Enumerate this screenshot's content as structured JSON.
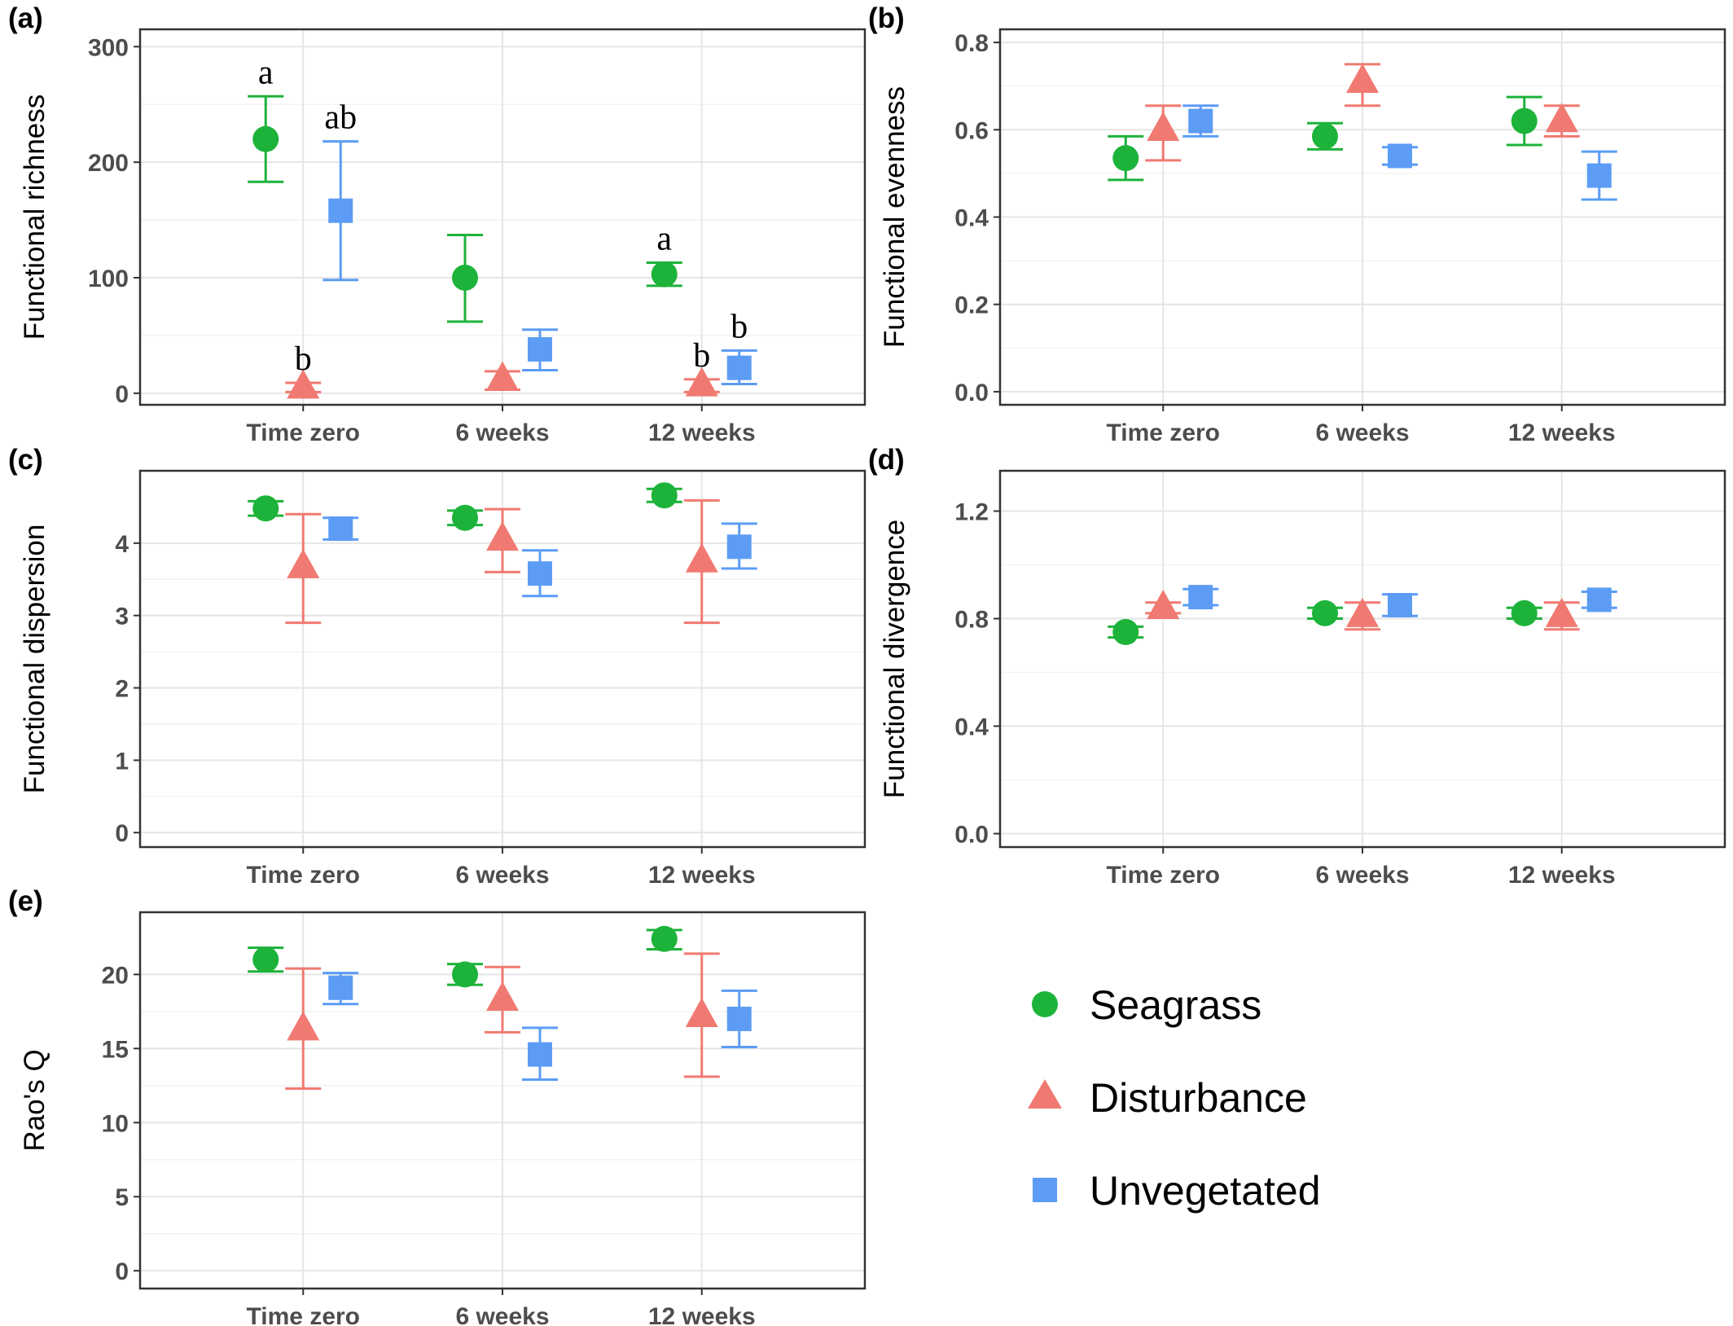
{
  "legend": {
    "items": [
      {
        "name": "Seagrass",
        "color": "#1db33a",
        "shape": "circle"
      },
      {
        "name": "Disturbance",
        "color": "#f07a72",
        "shape": "triangle"
      },
      {
        "name": "Unvegetated",
        "color": "#5c9cf5",
        "shape": "square"
      }
    ]
  },
  "chart_data": [
    {
      "type": "scatter",
      "panel_label": "(a)",
      "ylabel": "Functional richness",
      "categories": [
        "Time zero",
        "6 weeks",
        "12 weeks"
      ],
      "ylim": [
        -10,
        315
      ],
      "yticks": [
        0,
        100,
        200,
        300
      ],
      "grid": true,
      "series": [
        {
          "name": "Seagrass",
          "values": [
            220,
            100,
            103
          ],
          "lower": [
            183,
            62,
            93
          ],
          "upper": [
            257,
            137,
            113
          ]
        },
        {
          "name": "Disturbance",
          "values": [
            5,
            12,
            7
          ],
          "lower": [
            1,
            3,
            1
          ],
          "upper": [
            9,
            19,
            12
          ]
        },
        {
          "name": "Unvegetated",
          "values": [
            158,
            38,
            22
          ],
          "lower": [
            98,
            20,
            8
          ],
          "upper": [
            218,
            55,
            37
          ]
        }
      ],
      "annotations": [
        {
          "text": "a",
          "category": "Time zero",
          "series": "Seagrass",
          "y": 257
        },
        {
          "text": "b",
          "category": "Time zero",
          "series": "Disturbance",
          "y": 9
        },
        {
          "text": "ab",
          "category": "Time zero",
          "series": "Unvegetated",
          "y": 218
        },
        {
          "text": "a",
          "category": "12 weeks",
          "series": "Seagrass",
          "y": 113
        },
        {
          "text": "b",
          "category": "12 weeks",
          "series": "Disturbance",
          "y": 12
        },
        {
          "text": "b",
          "category": "12 weeks",
          "series": "Unvegetated",
          "y": 37
        }
      ]
    },
    {
      "type": "scatter",
      "panel_label": "(b)",
      "ylabel": "Functional evenness",
      "categories": [
        "Time zero",
        "6 weeks",
        "12 weeks"
      ],
      "ylim": [
        -0.03,
        0.83
      ],
      "yticks": [
        0.0,
        0.2,
        0.4,
        0.6,
        0.8
      ],
      "tick_decimals": 1,
      "grid": true,
      "series": [
        {
          "name": "Seagrass",
          "values": [
            0.535,
            0.585,
            0.62
          ],
          "lower": [
            0.485,
            0.555,
            0.565
          ],
          "upper": [
            0.585,
            0.615,
            0.675
          ]
        },
        {
          "name": "Disturbance",
          "values": [
            0.6,
            0.71,
            0.62
          ],
          "lower": [
            0.53,
            0.655,
            0.585
          ],
          "upper": [
            0.655,
            0.75,
            0.655
          ]
        },
        {
          "name": "Unvegetated",
          "values": [
            0.62,
            0.54,
            0.495
          ],
          "lower": [
            0.585,
            0.52,
            0.44
          ],
          "upper": [
            0.655,
            0.56,
            0.55
          ]
        }
      ]
    },
    {
      "type": "scatter",
      "panel_label": "(c)",
      "ylabel": "Functional dispersion",
      "categories": [
        "Time zero",
        "6 weeks",
        "12 weeks"
      ],
      "ylim": [
        -0.2,
        5.0
      ],
      "yticks": [
        0,
        1,
        2,
        3,
        4
      ],
      "grid": true,
      "series": [
        {
          "name": "Seagrass",
          "values": [
            4.48,
            4.35,
            4.66
          ],
          "lower": [
            4.38,
            4.25,
            4.57
          ],
          "upper": [
            4.58,
            4.45,
            4.75
          ]
        },
        {
          "name": "Disturbance",
          "values": [
            3.67,
            4.05,
            3.75
          ],
          "lower": [
            2.9,
            3.6,
            2.9
          ],
          "upper": [
            4.4,
            4.47,
            4.59
          ]
        },
        {
          "name": "Unvegetated",
          "values": [
            4.2,
            3.58,
            3.95
          ],
          "lower": [
            4.05,
            3.27,
            3.65
          ],
          "upper": [
            4.35,
            3.9,
            4.27
          ]
        }
      ]
    },
    {
      "type": "scatter",
      "panel_label": "(d)",
      "ylabel": "Functional divergence",
      "categories": [
        "Time zero",
        "6 weeks",
        "12 weeks"
      ],
      "ylim": [
        -0.05,
        1.35
      ],
      "yticks": [
        0.0,
        0.4,
        0.8,
        1.2
      ],
      "tick_decimals": 1,
      "grid": true,
      "series": [
        {
          "name": "Seagrass",
          "values": [
            0.75,
            0.82,
            0.82
          ],
          "lower": [
            0.73,
            0.8,
            0.8
          ],
          "upper": [
            0.77,
            0.84,
            0.84
          ]
        },
        {
          "name": "Disturbance",
          "values": [
            0.84,
            0.81,
            0.81
          ],
          "lower": [
            0.82,
            0.76,
            0.76
          ],
          "upper": [
            0.86,
            0.86,
            0.86
          ]
        },
        {
          "name": "Unvegetated",
          "values": [
            0.88,
            0.85,
            0.87
          ],
          "lower": [
            0.85,
            0.81,
            0.84
          ],
          "upper": [
            0.91,
            0.89,
            0.9
          ]
        }
      ]
    },
    {
      "type": "scatter",
      "panel_label": "(e)",
      "ylabel": "Rao's Q",
      "categories": [
        "Time zero",
        "6 weeks",
        "12 weeks"
      ],
      "ylim": [
        -1.2,
        24.2
      ],
      "yticks": [
        0,
        5,
        10,
        15,
        20
      ],
      "grid": true,
      "series": [
        {
          "name": "Seagrass",
          "values": [
            21.0,
            20.0,
            22.4
          ],
          "lower": [
            20.2,
            19.3,
            21.7
          ],
          "upper": [
            21.8,
            20.7,
            23.0
          ]
        },
        {
          "name": "Disturbance",
          "values": [
            16.3,
            18.3,
            17.2
          ],
          "lower": [
            12.3,
            16.1,
            13.1
          ],
          "upper": [
            20.4,
            20.5,
            21.4
          ]
        },
        {
          "name": "Unvegetated",
          "values": [
            19.1,
            14.6,
            17.0
          ],
          "lower": [
            18.0,
            12.9,
            15.1
          ],
          "upper": [
            20.1,
            16.4,
            18.9
          ]
        }
      ]
    }
  ]
}
